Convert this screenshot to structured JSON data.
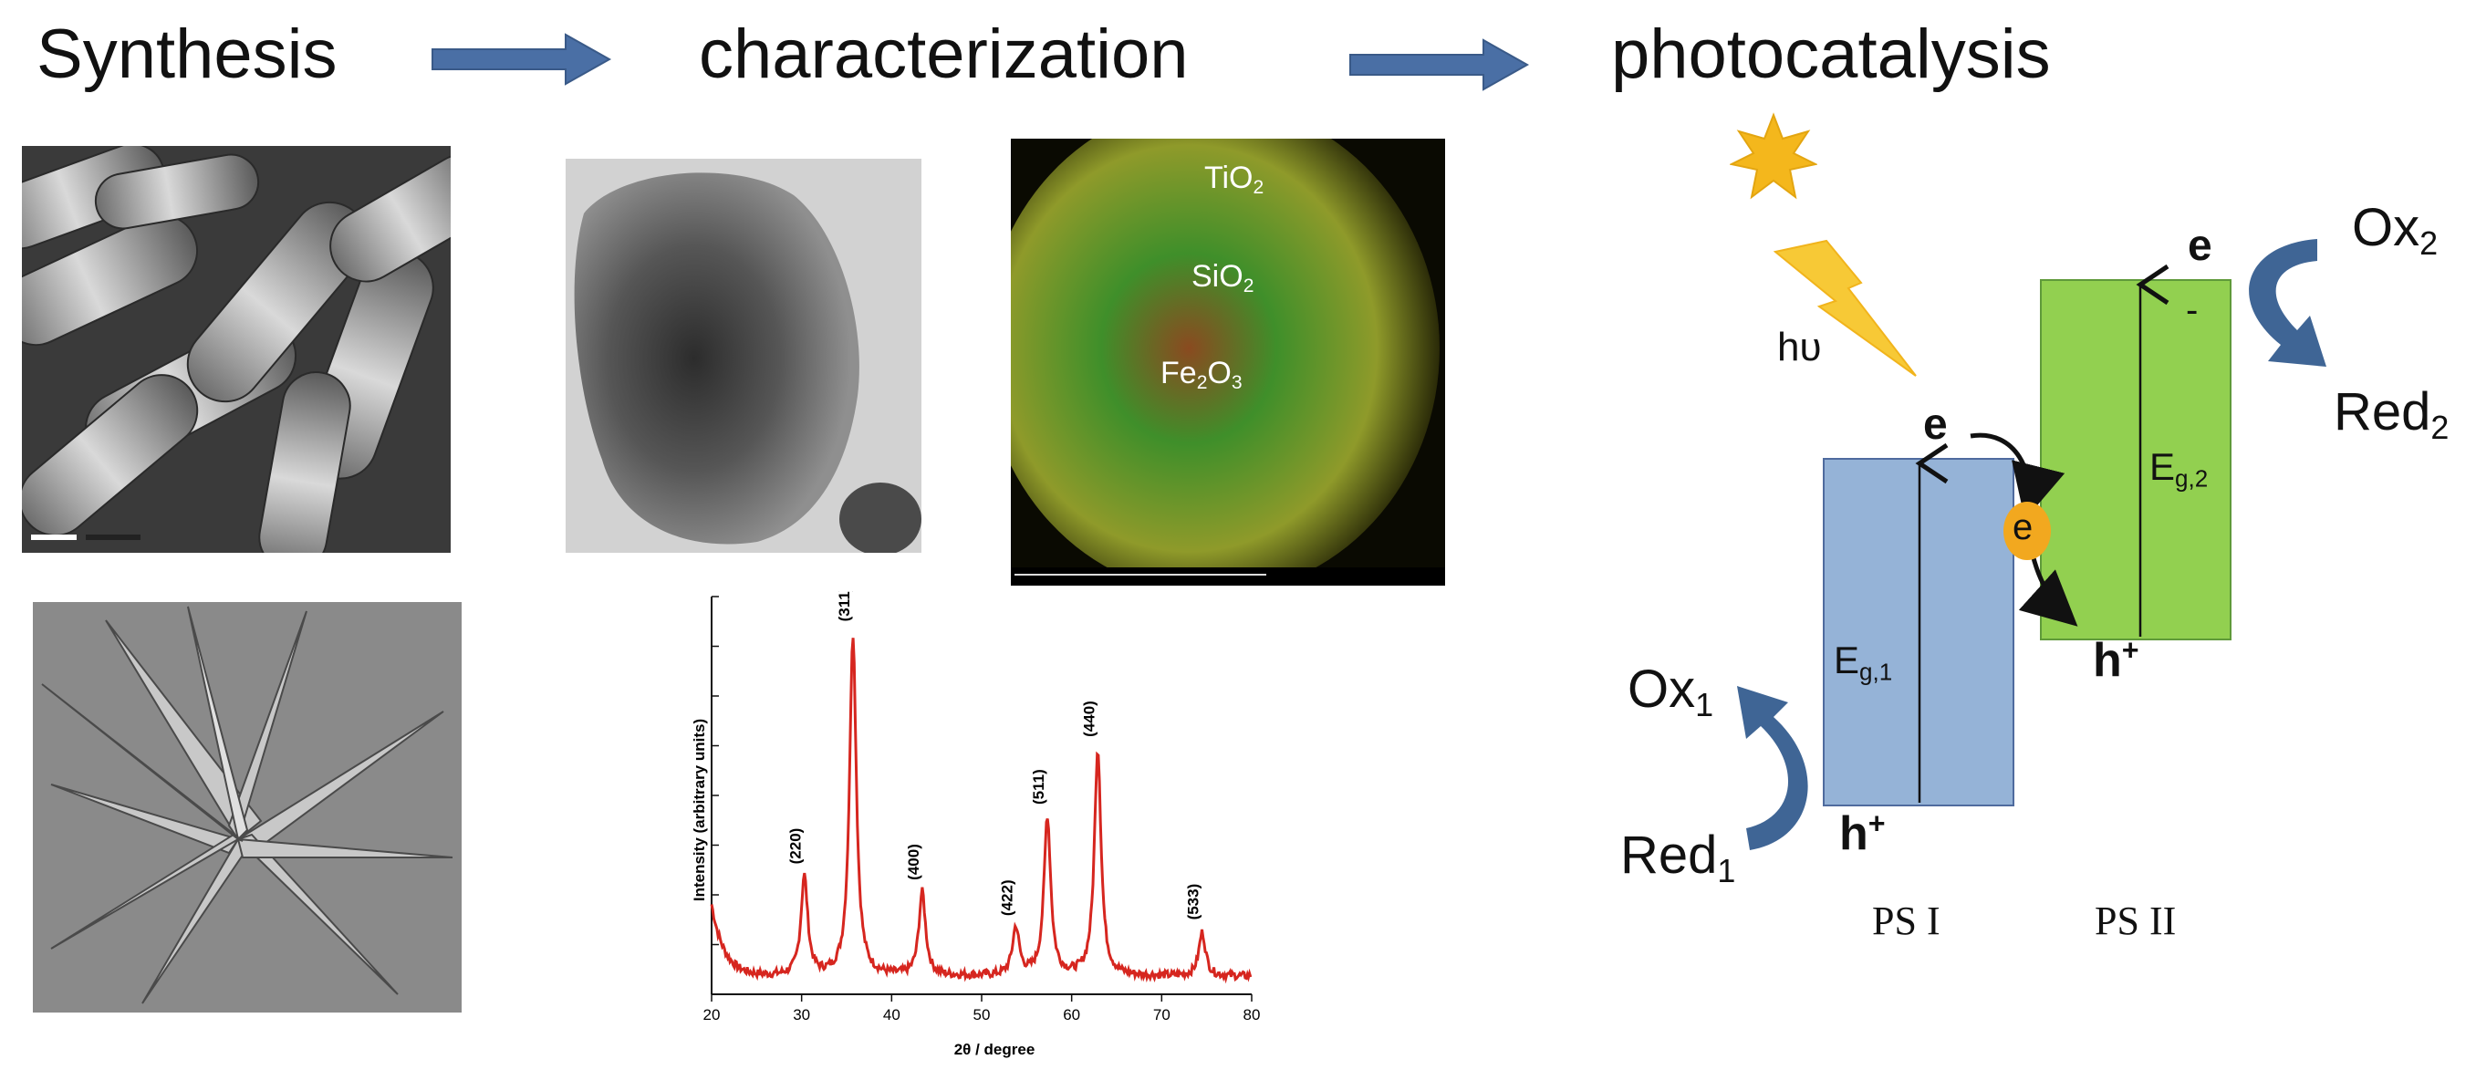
{
  "headings": {
    "synthesis": "Synthesis",
    "characterization": "characterization",
    "photocatalysis": "photocatalysis"
  },
  "colors": {
    "flow_arrow": "#4a6fa5",
    "band_ps1": "#95b3d7",
    "band_ps1_border": "#4f6b9e",
    "band_ps2": "#92d050",
    "band_ps2_border": "#5f9a3a",
    "redox_arrow": "#3f6595",
    "sun": "#f4b71c",
    "lightning": "#f7c936",
    "electron_dot": "#f2a81f",
    "xrd_line": "#d6261f"
  },
  "images": {
    "sem_rods": "SEM micrograph of nanorod bundles",
    "tem_particle": "TEM micrograph of a nanoparticle cluster",
    "elemental_map": "Elemental map",
    "sem_star": "SEM micrograph of star-shaped crystals"
  },
  "elemental_map": {
    "labels": [
      {
        "main": "TiO",
        "sub": "2"
      },
      {
        "main": "SiO",
        "sub": "2"
      },
      {
        "main": "Fe",
        "sub1": "2",
        "mid": "O",
        "sub2": "3"
      }
    ]
  },
  "chart_data": {
    "type": "line",
    "xlabel": "2θ / degree",
    "ylabel": "Intensity (arbitrary units)",
    "xlim": [
      20,
      80
    ],
    "xticks": [
      "20",
      "30",
      "40",
      "50",
      "60",
      "70",
      "80"
    ],
    "peaks": [
      {
        "x": 30.3,
        "label": "(220)",
        "height": 0.25
      },
      {
        "x": 35.7,
        "label": "(311)",
        "height": 0.86
      },
      {
        "x": 43.4,
        "label": "(400)",
        "height": 0.21
      },
      {
        "x": 53.8,
        "label": "(422)",
        "height": 0.12
      },
      {
        "x": 57.3,
        "label": "(511)",
        "height": 0.4
      },
      {
        "x": 62.9,
        "label": "(440)",
        "height": 0.57
      },
      {
        "x": 74.5,
        "label": "(533)",
        "height": 0.11
      }
    ]
  },
  "photocatalysis": {
    "hv": "hυ",
    "e_top_ps2": "e",
    "minus_ps2": "-",
    "ox2": {
      "main": "Ox",
      "sub": "2"
    },
    "red2": {
      "main": "Red",
      "sub": "2"
    },
    "eg2": {
      "main": "E",
      "sub": "g,2"
    },
    "h_ps2": {
      "main": "h",
      "sup": "+"
    },
    "e_top_ps1": "e",
    "e_transfer": "e",
    "eg1": {
      "main": "E",
      "sub": "g,1"
    },
    "ox1": {
      "main": "Ox",
      "sub": "1"
    },
    "red1": {
      "main": "Red",
      "sub": "1"
    },
    "h_ps1": {
      "main": "h",
      "sup": "+"
    },
    "ps1_label": "PS I",
    "ps2_label": "PS II"
  }
}
